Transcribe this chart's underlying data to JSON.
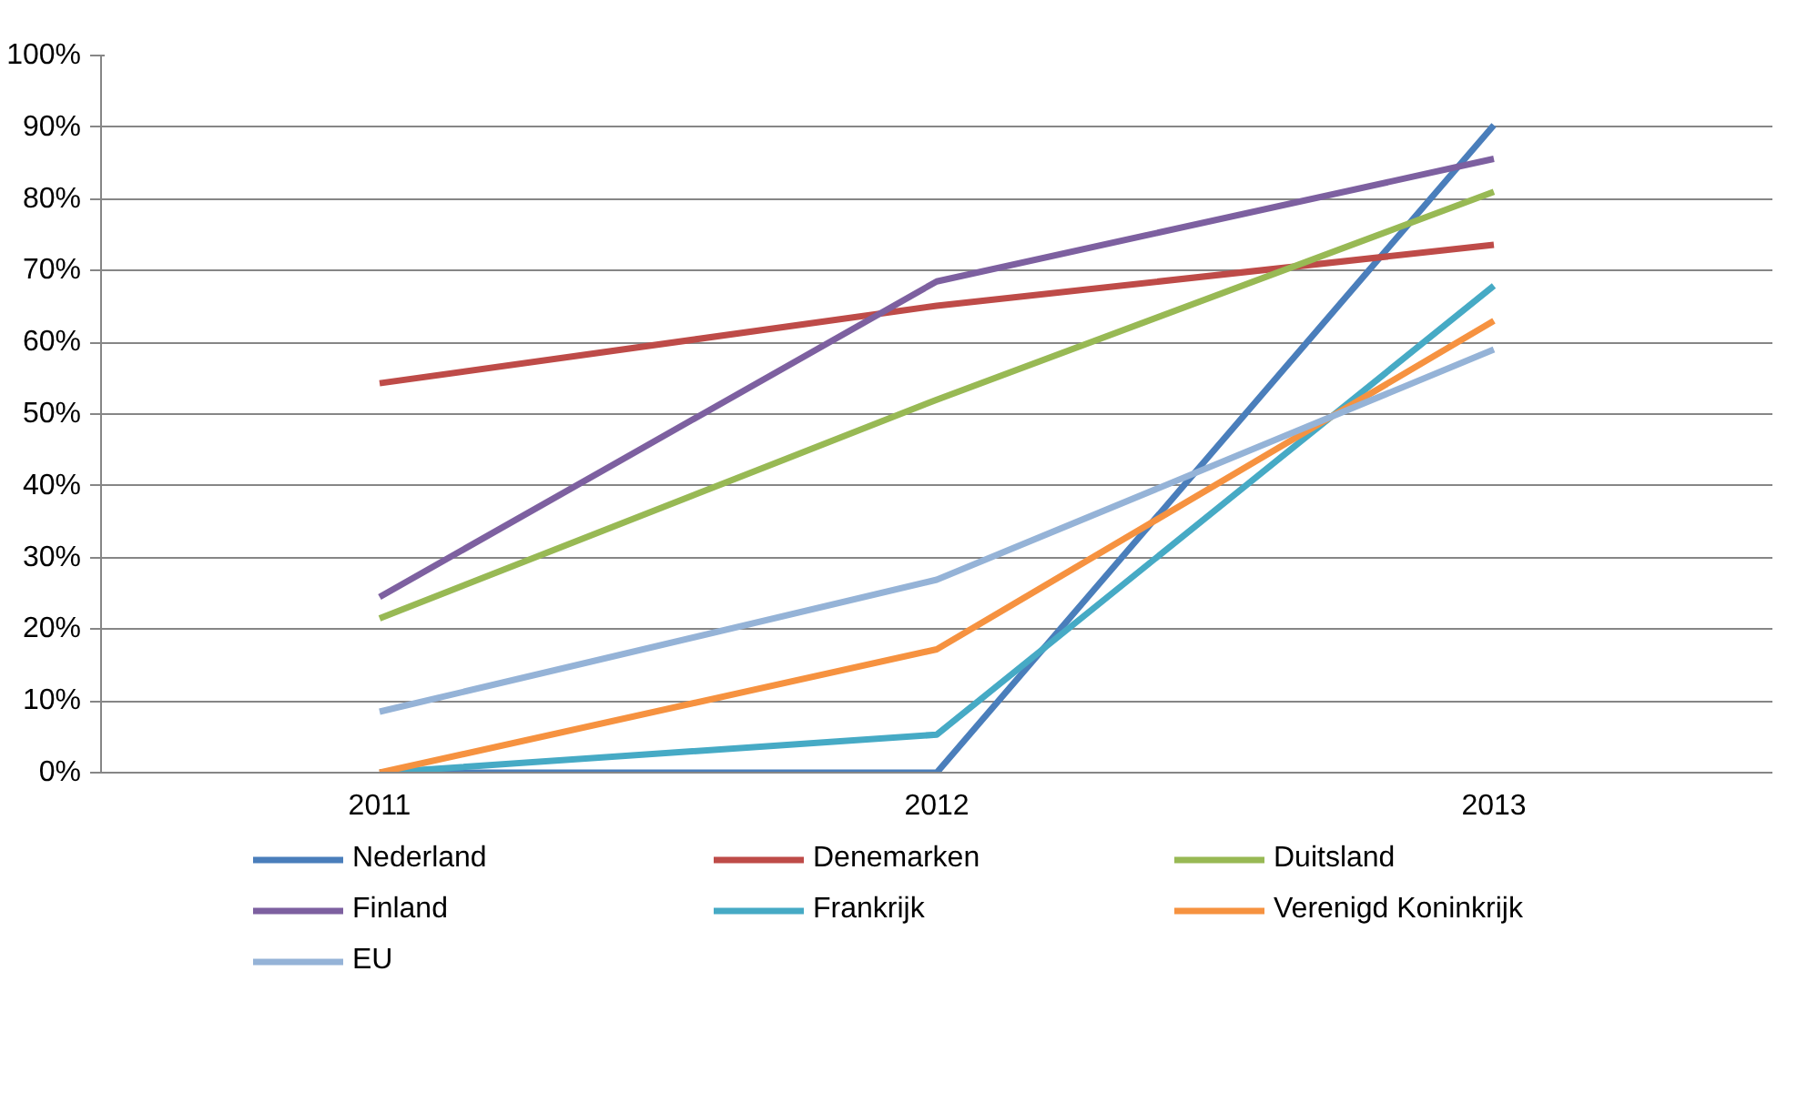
{
  "chart_data": {
    "type": "line",
    "categories": [
      "2011",
      "2012",
      "2013"
    ],
    "series": [
      {
        "name": "Nederland",
        "color": "#4a7ebb",
        "values": [
          0,
          0,
          90.3
        ]
      },
      {
        "name": "Denemarken",
        "color": "#be4b48",
        "values": [
          54.3,
          65.1,
          73.6
        ]
      },
      {
        "name": "Duitsland",
        "color": "#98b954",
        "values": [
          21.5,
          52,
          81
        ]
      },
      {
        "name": "Finland",
        "color": "#7d60a0",
        "values": [
          24.5,
          68.5,
          85.6
        ]
      },
      {
        "name": "Frankrijk",
        "color": "#46aac5",
        "values": [
          0,
          5.3,
          67.9
        ]
      },
      {
        "name": "Verenigd Koninkrijk",
        "color": "#f69240",
        "values": [
          0,
          17.2,
          63
        ]
      },
      {
        "name": "EU",
        "color": "#95b3d7",
        "values": [
          8.5,
          26.9,
          59
        ]
      }
    ],
    "ylim": [
      0,
      100
    ],
    "yticks": [
      {
        "value": 0,
        "label": "0%"
      },
      {
        "value": 10,
        "label": "10%"
      },
      {
        "value": 20,
        "label": "20%"
      },
      {
        "value": 30,
        "label": "30%"
      },
      {
        "value": 40,
        "label": "40%"
      },
      {
        "value": 50,
        "label": "50%"
      },
      {
        "value": 60,
        "label": "60%"
      },
      {
        "value": 70,
        "label": "70%"
      },
      {
        "value": 80,
        "label": "80%"
      },
      {
        "value": 90,
        "label": "90%"
      },
      {
        "value": 100,
        "label": "100%"
      }
    ],
    "grid": "y",
    "legend": "bottom",
    "marker": "none",
    "line_style": "solid"
  }
}
